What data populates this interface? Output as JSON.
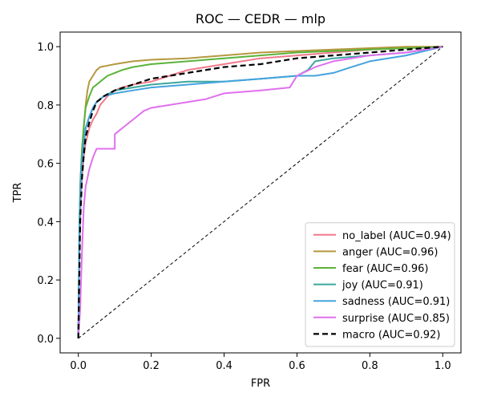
{
  "chart_data": {
    "type": "line",
    "title": "ROC — CEDR — mlp",
    "xlabel": "FPR",
    "ylabel": "TPR",
    "xlim": [
      -0.05,
      1.05
    ],
    "ylim": [
      -0.05,
      1.05
    ],
    "xticks": [
      "0.0",
      "0.2",
      "0.4",
      "0.6",
      "0.8",
      "1.0"
    ],
    "yticks": [
      "0.0",
      "0.2",
      "0.4",
      "0.6",
      "0.8",
      "1.0"
    ],
    "grid": false,
    "legend_position": "lower-right",
    "series": [
      {
        "name": "no_label (AUC=0.94)",
        "color": "#f07a8b",
        "style": "solid",
        "points": [
          [
            0,
            0
          ],
          [
            0.003,
            0.3
          ],
          [
            0.006,
            0.45
          ],
          [
            0.01,
            0.55
          ],
          [
            0.015,
            0.62
          ],
          [
            0.02,
            0.67
          ],
          [
            0.03,
            0.72
          ],
          [
            0.04,
            0.75
          ],
          [
            0.05,
            0.77
          ],
          [
            0.06,
            0.8
          ],
          [
            0.08,
            0.83
          ],
          [
            0.1,
            0.85
          ],
          [
            0.12,
            0.86
          ],
          [
            0.15,
            0.87
          ],
          [
            0.2,
            0.88
          ],
          [
            0.25,
            0.9
          ],
          [
            0.3,
            0.92
          ],
          [
            0.4,
            0.94
          ],
          [
            0.5,
            0.96
          ],
          [
            0.6,
            0.97
          ],
          [
            0.7,
            0.98
          ],
          [
            0.8,
            0.99
          ],
          [
            0.9,
            0.995
          ],
          [
            1,
            1
          ]
        ]
      },
      {
        "name": "anger (AUC=0.96)",
        "color": "#b5983e",
        "style": "solid",
        "points": [
          [
            0,
            0
          ],
          [
            0.003,
            0.4
          ],
          [
            0.006,
            0.55
          ],
          [
            0.01,
            0.65
          ],
          [
            0.015,
            0.72
          ],
          [
            0.02,
            0.8
          ],
          [
            0.025,
            0.85
          ],
          [
            0.03,
            0.88
          ],
          [
            0.04,
            0.9
          ],
          [
            0.05,
            0.92
          ],
          [
            0.06,
            0.93
          ],
          [
            0.08,
            0.935
          ],
          [
            0.1,
            0.94
          ],
          [
            0.15,
            0.95
          ],
          [
            0.2,
            0.955
          ],
          [
            0.3,
            0.96
          ],
          [
            0.4,
            0.97
          ],
          [
            0.5,
            0.98
          ],
          [
            0.6,
            0.985
          ],
          [
            0.7,
            0.99
          ],
          [
            0.8,
            0.995
          ],
          [
            0.9,
            1
          ],
          [
            1,
            1
          ]
        ]
      },
      {
        "name": "fear (AUC=0.96)",
        "color": "#5ab33a",
        "style": "solid",
        "points": [
          [
            0,
            0
          ],
          [
            0.003,
            0.4
          ],
          [
            0.006,
            0.55
          ],
          [
            0.01,
            0.65
          ],
          [
            0.015,
            0.73
          ],
          [
            0.02,
            0.79
          ],
          [
            0.03,
            0.83
          ],
          [
            0.04,
            0.86
          ],
          [
            0.05,
            0.87
          ],
          [
            0.06,
            0.88
          ],
          [
            0.08,
            0.9
          ],
          [
            0.1,
            0.91
          ],
          [
            0.12,
            0.92
          ],
          [
            0.15,
            0.93
          ],
          [
            0.2,
            0.94
          ],
          [
            0.3,
            0.95
          ],
          [
            0.4,
            0.96
          ],
          [
            0.5,
            0.97
          ],
          [
            0.6,
            0.98
          ],
          [
            0.7,
            0.985
          ],
          [
            0.8,
            0.99
          ],
          [
            0.9,
            0.995
          ],
          [
            1,
            1
          ]
        ]
      },
      {
        "name": "joy (AUC=0.91)",
        "color": "#3aa89c",
        "style": "solid",
        "points": [
          [
            0,
            0
          ],
          [
            0.003,
            0.4
          ],
          [
            0.006,
            0.55
          ],
          [
            0.01,
            0.62
          ],
          [
            0.015,
            0.68
          ],
          [
            0.02,
            0.72
          ],
          [
            0.03,
            0.76
          ],
          [
            0.04,
            0.79
          ],
          [
            0.05,
            0.81
          ],
          [
            0.07,
            0.83
          ],
          [
            0.1,
            0.85
          ],
          [
            0.15,
            0.86
          ],
          [
            0.2,
            0.87
          ],
          [
            0.3,
            0.88
          ],
          [
            0.4,
            0.88
          ],
          [
            0.5,
            0.89
          ],
          [
            0.6,
            0.9
          ],
          [
            0.63,
            0.92
          ],
          [
            0.65,
            0.95
          ],
          [
            0.7,
            0.96
          ],
          [
            0.8,
            0.97
          ],
          [
            0.9,
            0.98
          ],
          [
            1,
            1
          ]
        ]
      },
      {
        "name": "sadness (AUC=0.91)",
        "color": "#44a3df",
        "style": "solid",
        "points": [
          [
            0,
            0
          ],
          [
            0.003,
            0.35
          ],
          [
            0.006,
            0.5
          ],
          [
            0.01,
            0.6
          ],
          [
            0.015,
            0.66
          ],
          [
            0.02,
            0.72
          ],
          [
            0.03,
            0.76
          ],
          [
            0.04,
            0.79
          ],
          [
            0.05,
            0.81
          ],
          [
            0.07,
            0.83
          ],
          [
            0.1,
            0.84
          ],
          [
            0.15,
            0.85
          ],
          [
            0.2,
            0.86
          ],
          [
            0.3,
            0.87
          ],
          [
            0.4,
            0.88
          ],
          [
            0.5,
            0.89
          ],
          [
            0.6,
            0.9
          ],
          [
            0.65,
            0.9
          ],
          [
            0.7,
            0.91
          ],
          [
            0.75,
            0.93
          ],
          [
            0.8,
            0.95
          ],
          [
            0.9,
            0.97
          ],
          [
            1,
            1
          ]
        ]
      },
      {
        "name": "surprise (AUC=0.85)",
        "color": "#e070ee",
        "style": "solid",
        "points": [
          [
            0,
            0
          ],
          [
            0.005,
            0.1
          ],
          [
            0.01,
            0.3
          ],
          [
            0.015,
            0.45
          ],
          [
            0.02,
            0.52
          ],
          [
            0.03,
            0.58
          ],
          [
            0.04,
            0.62
          ],
          [
            0.05,
            0.65
          ],
          [
            0.1,
            0.65
          ],
          [
            0.1,
            0.7
          ],
          [
            0.13,
            0.73
          ],
          [
            0.15,
            0.75
          ],
          [
            0.18,
            0.78
          ],
          [
            0.2,
            0.79
          ],
          [
            0.25,
            0.8
          ],
          [
            0.3,
            0.81
          ],
          [
            0.35,
            0.82
          ],
          [
            0.4,
            0.84
          ],
          [
            0.5,
            0.85
          ],
          [
            0.58,
            0.86
          ],
          [
            0.59,
            0.88
          ],
          [
            0.6,
            0.9
          ],
          [
            0.65,
            0.93
          ],
          [
            0.7,
            0.95
          ],
          [
            0.8,
            0.97
          ],
          [
            0.9,
            0.98
          ],
          [
            1,
            1
          ]
        ]
      },
      {
        "name": "macro (AUC=0.92)",
        "color": "#000000",
        "style": "dashed",
        "points": [
          [
            0,
            0
          ],
          [
            0.005,
            0.4
          ],
          [
            0.01,
            0.55
          ],
          [
            0.015,
            0.63
          ],
          [
            0.02,
            0.69
          ],
          [
            0.03,
            0.74
          ],
          [
            0.04,
            0.78
          ],
          [
            0.05,
            0.81
          ],
          [
            0.07,
            0.83
          ],
          [
            0.1,
            0.85
          ],
          [
            0.15,
            0.87
          ],
          [
            0.2,
            0.89
          ],
          [
            0.3,
            0.91
          ],
          [
            0.4,
            0.93
          ],
          [
            0.5,
            0.94
          ],
          [
            0.6,
            0.96
          ],
          [
            0.7,
            0.97
          ],
          [
            0.8,
            0.98
          ],
          [
            0.9,
            0.99
          ],
          [
            1,
            1
          ]
        ]
      },
      {
        "name": "",
        "color": "#000000",
        "style": "dashed-thin",
        "points": [
          [
            0,
            0
          ],
          [
            1,
            1
          ]
        ]
      }
    ]
  }
}
